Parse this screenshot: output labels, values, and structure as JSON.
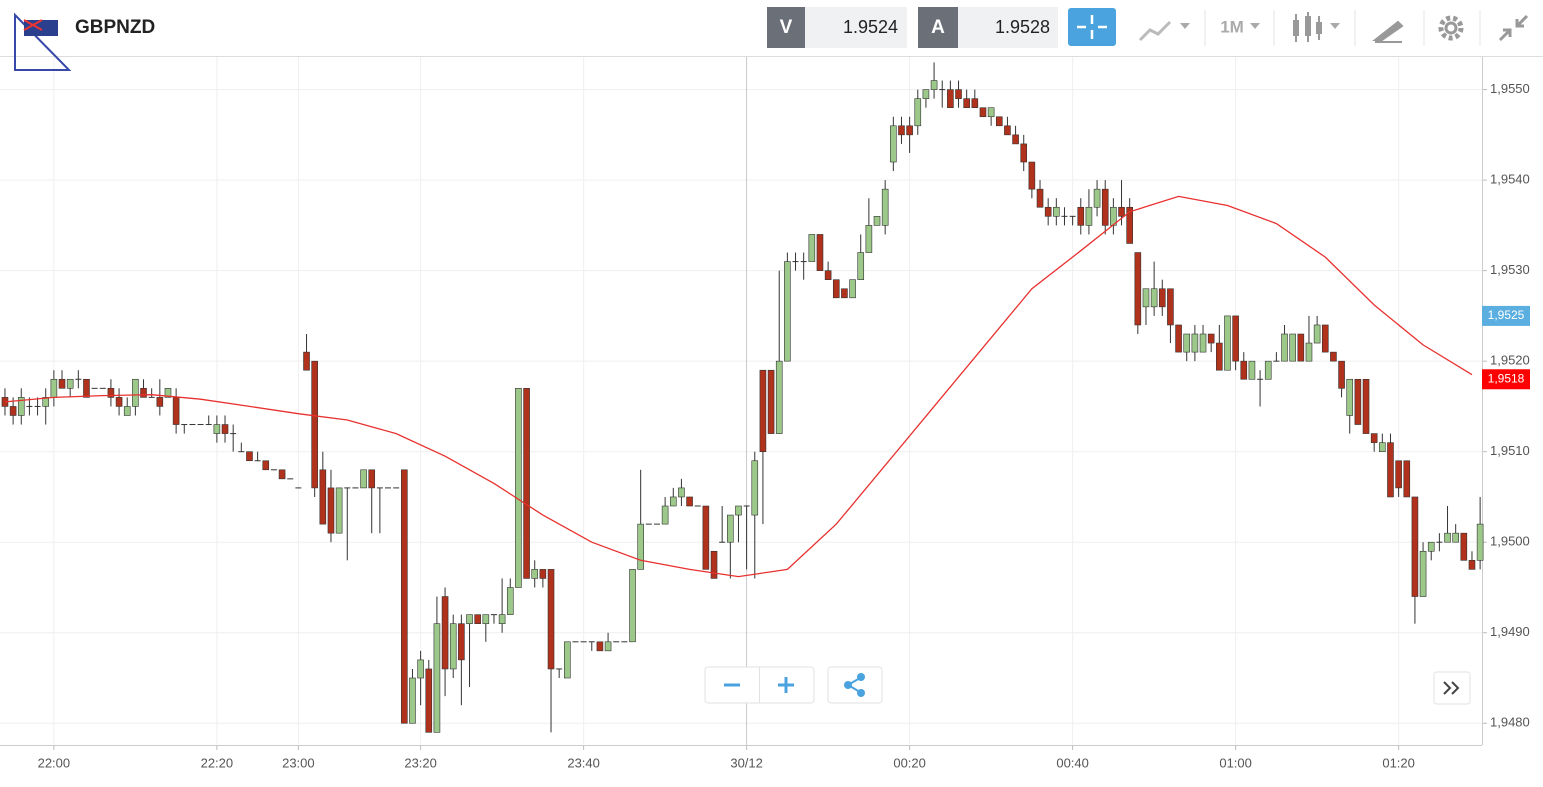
{
  "header": {
    "symbol": "GBPNZD",
    "bid_label": "V",
    "bid": "1.9524",
    "ask_label": "A",
    "ask": "1.9528",
    "timeframe": "1M"
  },
  "chart_data": {
    "type": "candlestick",
    "up_color": "#9cc88a",
    "down_color": "#b0311c",
    "grid": true,
    "xlim": [
      -0.61,
      181.23
    ],
    "ylim": [
      1.94776,
      1.95536
    ],
    "xticks": [
      {
        "value": 6,
        "label": "22:00"
      },
      {
        "value": 26,
        "label": "22:20"
      },
      {
        "value": 36,
        "label": "23:00"
      },
      {
        "value": 51,
        "label": "23:20"
      },
      {
        "value": 71,
        "label": "23:40"
      },
      {
        "value": 91,
        "label": "30/12"
      },
      {
        "value": 111,
        "label": "00:20"
      },
      {
        "value": 131,
        "label": "00:40"
      },
      {
        "value": 151,
        "label": "01:00"
      },
      {
        "value": 171,
        "label": "01:20"
      }
    ],
    "yticks": [
      {
        "value": 1.948,
        "label": "1,9480"
      },
      {
        "value": 1.949,
        "label": "1,9490"
      },
      {
        "value": 1.95,
        "label": "1,9500"
      },
      {
        "value": 1.951,
        "label": "1,9510"
      },
      {
        "value": 1.952,
        "label": "1,9520"
      },
      {
        "value": 1.953,
        "label": "1,9530"
      },
      {
        "value": 1.954,
        "label": "1,9540"
      },
      {
        "value": 1.955,
        "label": "1,9550"
      }
    ],
    "price_markers": [
      {
        "value": 1.9525,
        "label": "1,9525",
        "color": "#5aaee0"
      },
      {
        "value": 1.9518,
        "label": "1,9518",
        "color": "#ff0000"
      }
    ],
    "ma": {
      "color": "#e8312f",
      "x": [
        0,
        6,
        12,
        18,
        24,
        30,
        36,
        42,
        48,
        54,
        60,
        66,
        72,
        78,
        84,
        90,
        96,
        102,
        108,
        114,
        120,
        126,
        132,
        138,
        144,
        150,
        156,
        162,
        168,
        174,
        180
      ],
      "values": [
        1.95155,
        1.9516,
        1.95162,
        1.95163,
        1.95158,
        1.9515,
        1.95142,
        1.95135,
        1.9512,
        1.95095,
        1.95065,
        1.9503,
        1.95,
        1.9498,
        1.9497,
        1.94962,
        1.9497,
        1.9502,
        1.95085,
        1.9515,
        1.95215,
        1.9528,
        1.95322,
        1.95365,
        1.95382,
        1.95372,
        1.95352,
        1.95315,
        1.95262,
        1.95218,
        1.95185
      ]
    },
    "ohlc": [
      [
        1.9516,
        1.9517,
        1.9514,
        1.9515
      ],
      [
        1.9515,
        1.9516,
        1.9513,
        1.9514
      ],
      [
        1.9514,
        1.9517,
        1.9513,
        1.9516
      ],
      [
        1.9515,
        1.9516,
        1.9514,
        1.9515
      ],
      [
        1.9515,
        1.9516,
        1.9514,
        1.9515
      ],
      [
        1.9515,
        1.9517,
        1.9513,
        1.9516
      ],
      [
        1.9516,
        1.9519,
        1.9515,
        1.9518
      ],
      [
        1.9518,
        1.9519,
        1.9517,
        1.9517
      ],
      [
        1.9517,
        1.9518,
        1.9516,
        1.9518
      ],
      [
        1.9518,
        1.9519,
        1.9517,
        1.9518
      ],
      [
        1.9518,
        1.9518,
        1.9516,
        1.9516
      ],
      [
        1.9517,
        1.9517,
        1.9517,
        1.9517
      ],
      [
        1.9517,
        1.9517,
        1.9517,
        1.9517
      ],
      [
        1.9517,
        1.9518,
        1.9515,
        1.9516
      ],
      [
        1.9516,
        1.9517,
        1.9514,
        1.9515
      ],
      [
        1.9514,
        1.9516,
        1.9514,
        1.9515
      ],
      [
        1.9515,
        1.9518,
        1.9514,
        1.9518
      ],
      [
        1.9517,
        1.9518,
        1.9516,
        1.9516
      ],
      [
        1.9516,
        1.9517,
        1.9516,
        1.9516
      ],
      [
        1.9516,
        1.9518,
        1.9514,
        1.9515
      ],
      [
        1.9516,
        1.9517,
        1.9516,
        1.9517
      ],
      [
        1.9516,
        1.9517,
        1.9512,
        1.9513
      ],
      [
        1.9513,
        1.9513,
        1.9512,
        1.9513
      ],
      [
        1.9513,
        1.9513,
        1.9513,
        1.9513
      ],
      [
        1.9513,
        1.9513,
        1.9513,
        1.9513
      ],
      [
        1.9513,
        1.9514,
        1.9513,
        1.9513
      ],
      [
        1.9512,
        1.9514,
        1.9511,
        1.9513
      ],
      [
        1.9513,
        1.9514,
        1.9511,
        1.9512
      ],
      [
        1.9512,
        1.9513,
        1.951,
        1.9512
      ],
      [
        1.951,
        1.9511,
        1.951,
        1.951
      ],
      [
        1.951,
        1.951,
        1.9509,
        1.9509
      ],
      [
        1.9509,
        1.951,
        1.9509,
        1.9509
      ],
      [
        1.9509,
        1.9509,
        1.9508,
        1.9508
      ],
      [
        1.9508,
        1.9508,
        1.9508,
        1.9508
      ],
      [
        1.9508,
        1.9508,
        1.9507,
        1.9507
      ],
      [
        1.9507,
        1.9507,
        1.9507,
        1.9507
      ],
      [
        1.9506,
        1.9506,
        1.9506,
        1.9506
      ],
      [
        1.9521,
        1.9523,
        1.9519,
        1.9519
      ],
      [
        1.952,
        1.952,
        1.9505,
        1.9506
      ],
      [
        1.9508,
        1.951,
        1.9502,
        1.9502
      ],
      [
        1.9506,
        1.9508,
        1.95,
        1.9501
      ],
      [
        1.9501,
        1.9506,
        1.9501,
        1.9506
      ],
      [
        1.9506,
        1.9506,
        1.9498,
        1.9506
      ],
      [
        1.9506,
        1.9506,
        1.9506,
        1.9506
      ],
      [
        1.9506,
        1.9508,
        1.9506,
        1.9508
      ],
      [
        1.9508,
        1.9508,
        1.9501,
        1.9506
      ],
      [
        1.9506,
        1.9506,
        1.9501,
        1.9506
      ],
      [
        1.9506,
        1.9506,
        1.9506,
        1.9506
      ],
      [
        1.9506,
        1.9506,
        1.9506,
        1.9506
      ],
      [
        1.9508,
        1.9508,
        1.948,
        1.948
      ],
      [
        1.948,
        1.9486,
        1.948,
        1.9485
      ],
      [
        1.9485,
        1.9488,
        1.9482,
        1.9487
      ],
      [
        1.9486,
        1.9487,
        1.9479,
        1.9479
      ],
      [
        1.9479,
        1.9494,
        1.9479,
        1.9491
      ],
      [
        1.9494,
        1.9495,
        1.9483,
        1.9486
      ],
      [
        1.9486,
        1.9492,
        1.9485,
        1.9491
      ],
      [
        1.9491,
        1.9492,
        1.9482,
        1.9487
      ],
      [
        1.9491,
        1.9492,
        1.9484,
        1.9492
      ],
      [
        1.9492,
        1.9492,
        1.9491,
        1.9491
      ],
      [
        1.9491,
        1.9492,
        1.9489,
        1.9492
      ],
      [
        1.9492,
        1.9492,
        1.9491,
        1.9492
      ],
      [
        1.9491,
        1.9496,
        1.949,
        1.9492
      ],
      [
        1.9492,
        1.9496,
        1.9492,
        1.9495
      ],
      [
        1.9495,
        1.9517,
        1.9495,
        1.9517
      ],
      [
        1.9517,
        1.9517,
        1.9496,
        1.9496
      ],
      [
        1.9496,
        1.9498,
        1.9495,
        1.9497
      ],
      [
        1.9497,
        1.9497,
        1.9495,
        1.9496
      ],
      [
        1.9497,
        1.9497,
        1.9479,
        1.9486
      ],
      [
        1.9486,
        1.9486,
        1.9485,
        1.9486
      ],
      [
        1.9485,
        1.9489,
        1.9485,
        1.9489
      ],
      [
        1.9489,
        1.9489,
        1.9489,
        1.9489
      ],
      [
        1.9489,
        1.9489,
        1.9489,
        1.9489
      ],
      [
        1.9489,
        1.9489,
        1.9488,
        1.9489
      ],
      [
        1.9489,
        1.9489,
        1.9488,
        1.9488
      ],
      [
        1.9488,
        1.949,
        1.9488,
        1.9489
      ],
      [
        1.9489,
        1.9489,
        1.9489,
        1.9489
      ],
      [
        1.9489,
        1.9489,
        1.9489,
        1.9489
      ],
      [
        1.9489,
        1.9497,
        1.9489,
        1.9497
      ],
      [
        1.9497,
        1.9508,
        1.9497,
        1.9502
      ],
      [
        1.9502,
        1.9502,
        1.9502,
        1.9502
      ],
      [
        1.9502,
        1.9502,
        1.9502,
        1.9502
      ],
      [
        1.9502,
        1.9505,
        1.9502,
        1.9504
      ],
      [
        1.9504,
        1.9506,
        1.9504,
        1.9505
      ],
      [
        1.9505,
        1.9507,
        1.9504,
        1.9506
      ],
      [
        1.9505,
        1.9505,
        1.9504,
        1.9504
      ],
      [
        1.9504,
        1.9504,
        1.9504,
        1.9504
      ],
      [
        1.9504,
        1.9504,
        1.9497,
        1.9497
      ],
      [
        1.9499,
        1.9499,
        1.9496,
        1.9496
      ],
      [
        1.95,
        1.9504,
        1.95,
        1.95
      ],
      [
        1.95,
        1.9503,
        1.9496,
        1.9503
      ],
      [
        1.9503,
        1.9504,
        1.95,
        1.9504
      ],
      [
        1.9504,
        1.9504,
        1.9497,
        1.9504
      ],
      [
        1.9503,
        1.951,
        1.9496,
        1.9509
      ],
      [
        1.9519,
        1.9519,
        1.9502,
        1.951
      ],
      [
        1.9519,
        1.9519,
        1.9512,
        1.9512
      ],
      [
        1.9512,
        1.953,
        1.9512,
        1.952
      ],
      [
        1.952,
        1.9532,
        1.952,
        1.9531
      ],
      [
        1.9531,
        1.9532,
        1.953,
        1.9531
      ],
      [
        1.9531,
        1.9532,
        1.9529,
        1.9531
      ],
      [
        1.9531,
        1.9534,
        1.9531,
        1.9534
      ],
      [
        1.9534,
        1.9534,
        1.953,
        1.953
      ],
      [
        1.953,
        1.9531,
        1.9529,
        1.9529
      ],
      [
        1.9529,
        1.9529,
        1.9527,
        1.9527
      ],
      [
        1.9528,
        1.9528,
        1.9527,
        1.9527
      ],
      [
        1.9527,
        1.9529,
        1.9527,
        1.9529
      ],
      [
        1.9529,
        1.9534,
        1.9529,
        1.9532
      ],
      [
        1.9532,
        1.9538,
        1.9532,
        1.9535
      ],
      [
        1.9535,
        1.9536,
        1.9535,
        1.9536
      ],
      [
        1.9535,
        1.954,
        1.9534,
        1.9539
      ],
      [
        1.9542,
        1.9547,
        1.9541,
        1.9546
      ],
      [
        1.9546,
        1.9547,
        1.9544,
        1.9545
      ],
      [
        1.9546,
        1.9547,
        1.9543,
        1.9545
      ],
      [
        1.9546,
        1.955,
        1.9545,
        1.9549
      ],
      [
        1.9549,
        1.955,
        1.9548,
        1.955
      ],
      [
        1.955,
        1.9553,
        1.9549,
        1.9551
      ],
      [
        1.955,
        1.9551,
        1.9548,
        1.955
      ],
      [
        1.955,
        1.9551,
        1.9548,
        1.9548
      ],
      [
        1.955,
        1.9551,
        1.9548,
        1.9549
      ],
      [
        1.9549,
        1.955,
        1.9548,
        1.9548
      ],
      [
        1.9549,
        1.955,
        1.9548,
        1.9548
      ],
      [
        1.9548,
        1.9548,
        1.9547,
        1.9547
      ],
      [
        1.9547,
        1.9548,
        1.9546,
        1.9548
      ],
      [
        1.9547,
        1.9547,
        1.9546,
        1.9546
      ],
      [
        1.9546,
        1.9547,
        1.9545,
        1.9545
      ],
      [
        1.9545,
        1.9546,
        1.9544,
        1.9544
      ],
      [
        1.9544,
        1.9545,
        1.9541,
        1.9542
      ],
      [
        1.9542,
        1.9542,
        1.9538,
        1.9539
      ],
      [
        1.9539,
        1.954,
        1.9537,
        1.9537
      ],
      [
        1.9537,
        1.9538,
        1.9535,
        1.9536
      ],
      [
        1.9536,
        1.9538,
        1.9535,
        1.9537
      ],
      [
        1.9536,
        1.9537,
        1.9535,
        1.9536
      ],
      [
        1.9536,
        1.9536,
        1.9535,
        1.9536
      ],
      [
        1.9537,
        1.9538,
        1.9534,
        1.9535
      ],
      [
        1.9535,
        1.9539,
        1.9534,
        1.9537
      ],
      [
        1.9537,
        1.954,
        1.9536,
        1.9539
      ],
      [
        1.9539,
        1.954,
        1.9534,
        1.9535
      ],
      [
        1.9535,
        1.9538,
        1.9534,
        1.9537
      ],
      [
        1.9537,
        1.954,
        1.9535,
        1.9536
      ],
      [
        1.9537,
        1.9538,
        1.9533,
        1.9533
      ],
      [
        1.9532,
        1.9532,
        1.9523,
        1.9524
      ],
      [
        1.9526,
        1.9528,
        1.9524,
        1.9528
      ],
      [
        1.9526,
        1.9531,
        1.9525,
        1.9528
      ],
      [
        1.9528,
        1.9529,
        1.9525,
        1.9526
      ],
      [
        1.9528,
        1.9528,
        1.9522,
        1.9524
      ],
      [
        1.9524,
        1.9524,
        1.9521,
        1.9521
      ],
      [
        1.9521,
        1.9523,
        1.952,
        1.9523
      ],
      [
        1.9521,
        1.9524,
        1.952,
        1.9523
      ],
      [
        1.9521,
        1.9524,
        1.9521,
        1.9523
      ],
      [
        1.9523,
        1.9523,
        1.9521,
        1.9522
      ],
      [
        1.9522,
        1.9524,
        1.9519,
        1.9519
      ],
      [
        1.9519,
        1.9525,
        1.9519,
        1.9525
      ],
      [
        1.9525,
        1.9525,
        1.9519,
        1.952
      ],
      [
        1.952,
        1.9521,
        1.9518,
        1.9518
      ],
      [
        1.9518,
        1.952,
        1.9518,
        1.952
      ],
      [
        1.9518,
        1.9519,
        1.9515,
        1.9518
      ],
      [
        1.9518,
        1.952,
        1.9518,
        1.952
      ],
      [
        1.952,
        1.9521,
        1.952,
        1.952
      ],
      [
        1.952,
        1.9524,
        1.952,
        1.9523
      ],
      [
        1.952,
        1.9523,
        1.952,
        1.9523
      ],
      [
        1.9523,
        1.9523,
        1.952,
        1.952
      ],
      [
        1.952,
        1.9525,
        1.952,
        1.9522
      ],
      [
        1.9522,
        1.9525,
        1.9522,
        1.9524
      ],
      [
        1.9524,
        1.9524,
        1.9521,
        1.9521
      ],
      [
        1.9521,
        1.9521,
        1.952,
        1.952
      ],
      [
        1.952,
        1.952,
        1.9516,
        1.9517
      ],
      [
        1.9514,
        1.9518,
        1.9512,
        1.9518
      ],
      [
        1.9518,
        1.9518,
        1.9513,
        1.9513
      ],
      [
        1.9518,
        1.9518,
        1.9512,
        1.9512
      ],
      [
        1.9512,
        1.9512,
        1.951,
        1.9511
      ],
      [
        1.951,
        1.9512,
        1.951,
        1.9511
      ],
      [
        1.9511,
        1.9512,
        1.9505,
        1.9505
      ],
      [
        1.9509,
        1.9509,
        1.9505,
        1.9506
      ],
      [
        1.9509,
        1.9509,
        1.9505,
        1.9505
      ],
      [
        1.9505,
        1.9505,
        1.9491,
        1.9494
      ],
      [
        1.9494,
        1.95,
        1.9494,
        1.9499
      ],
      [
        1.9499,
        1.95,
        1.9498,
        1.95
      ],
      [
        1.95,
        1.9501,
        1.9499,
        1.95
      ],
      [
        1.95,
        1.9504,
        1.95,
        1.9501
      ],
      [
        1.95,
        1.9502,
        1.95,
        1.9501
      ],
      [
        1.9501,
        1.9501,
        1.9498,
        1.9498
      ],
      [
        1.9498,
        1.9499,
        1.9497,
        1.9497
      ],
      [
        1.9498,
        1.9505,
        1.9497,
        1.9502
      ]
    ]
  }
}
